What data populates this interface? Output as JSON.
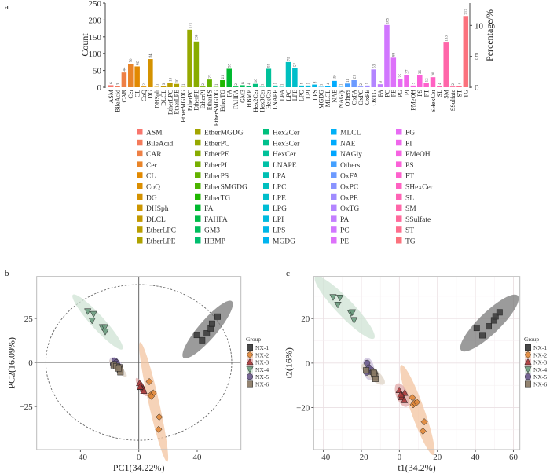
{
  "panels": {
    "a": "a",
    "b": "b",
    "c": "c"
  },
  "chart_data": [
    {
      "type": "bar",
      "ylabel": "Count",
      "y2label": "Percentage/%",
      "ylim": [
        0,
        250
      ],
      "yticks": [
        0,
        50,
        100,
        150,
        200,
        250
      ],
      "y2lim": [
        0,
        13.6
      ],
      "y2ticks": [
        0,
        5,
        10
      ],
      "legend": "bottom",
      "palette": "hue",
      "categories": [
        "ASM",
        "BileAcid",
        "CAR",
        "Cer",
        "CL",
        "CoQ",
        "DG",
        "DHSph",
        "DLCL",
        "EtherLPC",
        "EtherLPE",
        "EtherMGDG",
        "EtherPC",
        "EtherPE",
        "EtherPI",
        "EtherPS",
        "EtherSMGDG",
        "EtherTG",
        "FA",
        "FAHFA",
        "GM3",
        "HBMP",
        "Hex2Cer",
        "Hex3Cer",
        "HexCer",
        "LNAPE",
        "LPA",
        "LPC",
        "LPE",
        "LPG",
        "LPI",
        "LPS",
        "MGDG",
        "MLCL",
        "NAE",
        "NAGly",
        "Others",
        "OxFA",
        "OxPC",
        "OxPE",
        "OxTG",
        "PA",
        "PC",
        "PE",
        "PG",
        "PI",
        "PMeOH",
        "PS",
        "PT",
        "SHexCer",
        "SL",
        "SM",
        "SSulfate",
        "ST",
        "TG"
      ],
      "values": [
        6,
        3,
        44,
        70,
        62,
        2,
        84,
        1,
        3,
        13,
        10,
        1,
        171,
        136,
        2,
        23,
        1,
        21,
        55,
        2,
        6,
        4,
        10,
        1,
        55,
        5,
        1,
        75,
        57,
        5,
        5,
        8,
        1,
        4,
        19,
        1,
        11,
        21,
        2,
        5,
        53,
        9,
        185,
        88,
        25,
        37,
        5,
        36,
        12,
        30,
        4,
        133,
        2,
        4,
        212
      ]
    },
    {
      "type": "scatter",
      "xlabel": "PC1(34.22%)",
      "ylabel": "PC2(16.09%)",
      "xlim": [
        -70,
        70
      ],
      "ylim": [
        -49.5,
        48.8
      ],
      "xticks": [
        -40,
        0,
        40
      ],
      "yticks": [
        -25,
        0,
        25
      ],
      "grid": false,
      "reference_lines": true,
      "confidence_ellipse_radii": [
        63.7,
        44.2
      ],
      "legend_title": "Group",
      "legend": "right",
      "series": [
        {
          "name": "NX-1",
          "marker": "square",
          "color": "#3f3f3f",
          "fill": "#7a7a7a",
          "x": [
            39.8,
            43.4,
            46.6,
            49.3,
            50.2,
            54.0
          ],
          "y": [
            15.6,
            12.6,
            16.5,
            19.3,
            22.0,
            26.0
          ]
        },
        {
          "name": "NX-2",
          "marker": "diamond",
          "color": "#e0873a",
          "fill": "#f3c4a0",
          "x": [
            7.2,
            9.9,
            8.0,
            8.6,
            14.0,
            13.6
          ],
          "y": [
            -10.9,
            -17.4,
            -18.6,
            -19.2,
            -31.0,
            -38.0
          ]
        },
        {
          "name": "NX-3",
          "marker": "triangle-up",
          "color": "#a8383a",
          "fill": "#e0a8a8",
          "x": [
            0.5,
            2.0,
            2.9,
            1.4,
            3.4,
            0.9
          ],
          "y": [
            -11.8,
            -13.2,
            -15.0,
            -14.0,
            -16.2,
            -13.7
          ]
        },
        {
          "name": "NX-4",
          "marker": "triangle-down",
          "color": "#6c9c80",
          "fill": "#cfe3d4",
          "x": [
            -35.0,
            -31.0,
            -32.0,
            -25.0,
            -23.3,
            -23.0
          ],
          "y": [
            29.0,
            27.5,
            23.8,
            20.0,
            20.0,
            17.4
          ]
        },
        {
          "name": "NX-5",
          "marker": "circle",
          "color": "#6a5a8c",
          "fill": "#c9bedb",
          "x": [
            -16.5,
            -15.4,
            -16.5,
            -14.0,
            -15.0,
            -17.6
          ],
          "y": [
            1.0,
            -0.1,
            -1.3,
            -2.2,
            -1.0,
            -1.0
          ]
        },
        {
          "name": "NX-6",
          "marker": "square",
          "color": "#8a7a66",
          "fill": "#ddd3c6",
          "x": [
            -17.2,
            -15.4,
            -13.3,
            -12.9,
            -12.6,
            -14.0
          ],
          "y": [
            -1.6,
            -2.2,
            -2.8,
            -4.3,
            -5.5,
            -3.4
          ]
        }
      ]
    },
    {
      "type": "scatter",
      "xlabel": "t1(34.2%)",
      "ylabel": "t2(16%)",
      "xlim": [
        -45.1,
        63.4
      ],
      "ylim": [
        -38.9,
        38.9
      ],
      "xticks": [
        -40,
        -20,
        0,
        20,
        40,
        60
      ],
      "yticks": [
        -20,
        0,
        20
      ],
      "grid": true,
      "legend_title": "Group",
      "legend": "right",
      "series": [
        {
          "name": "NX-1",
          "marker": "square",
          "color": "#3f3f3f",
          "fill": "#7a7a7a",
          "x": [
            40.7,
            43.7,
            47.0,
            49.8,
            50.6,
            52.7
          ],
          "y": [
            15.8,
            12.5,
            16.5,
            19.2,
            21.0,
            22.8
          ]
        },
        {
          "name": "NX-2",
          "marker": "diamond",
          "color": "#e0873a",
          "fill": "#f3c4a0",
          "x": [
            6.8,
            7.3,
            8.0,
            9.2,
            13.1,
            12.4
          ],
          "y": [
            -15.5,
            -18.7,
            -17.9,
            -17.6,
            -26.4,
            -30.6
          ]
        },
        {
          "name": "NX-3",
          "marker": "triangle-up",
          "color": "#a8383a",
          "fill": "#e0a8a8",
          "x": [
            -0.1,
            2.8,
            1.5,
            1.0,
            2.6,
            0.7
          ],
          "y": [
            -12.2,
            -13.4,
            -14.6,
            -15.4,
            -16.7,
            -14.1
          ]
        },
        {
          "name": "NX-4",
          "marker": "triangle-down",
          "color": "#6c9c80",
          "fill": "#cfe3d4",
          "x": [
            -34.9,
            -31.3,
            -32.4,
            -25.5,
            -24.7,
            -23.9
          ],
          "y": [
            29.6,
            29.4,
            26.2,
            22.4,
            22.8,
            19.3
          ]
        },
        {
          "name": "NX-5",
          "marker": "circle",
          "color": "#6a5a8c",
          "fill": "#c9bedb",
          "x": [
            -17.0,
            -16.7,
            -14.8,
            -15.6,
            -17.2,
            -16.0
          ],
          "y": [
            0.0,
            -2.8,
            -3.1,
            -3.8,
            -4.2,
            -2.1
          ]
        },
        {
          "name": "NX-6",
          "marker": "square",
          "color": "#8a7a66",
          "fill": "#ddd3c6",
          "x": [
            -17.5,
            -13.7,
            -13.1,
            -12.8,
            -12.6,
            -13.4
          ],
          "y": [
            -3.3,
            -4.0,
            -5.2,
            -6.1,
            -7.1,
            -4.5
          ]
        }
      ]
    }
  ]
}
